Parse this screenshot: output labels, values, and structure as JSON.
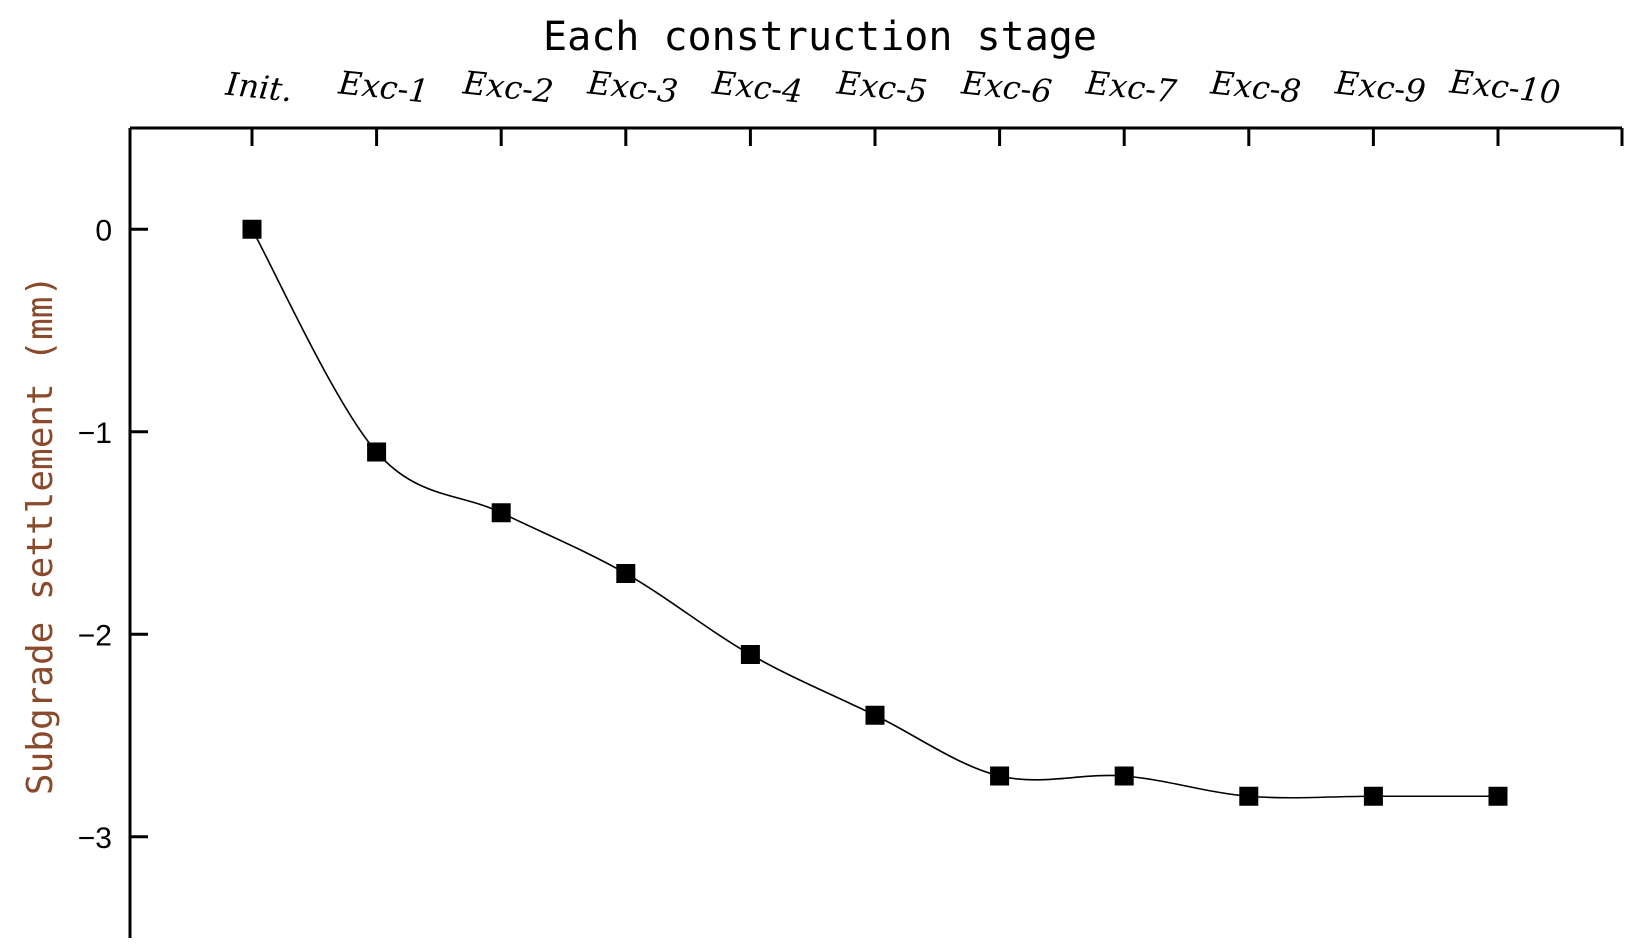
{
  "chart_data": {
    "type": "line",
    "title": "Each construction stage",
    "xlabel": "Each construction stage",
    "ylabel": "Subgrade settlement (mm)",
    "categories": [
      "Init.",
      "Exc-1",
      "Exc-2",
      "Exc-3",
      "Exc-4",
      "Exc-5",
      "Exc-6",
      "Exc-7",
      "Exc-8",
      "Exc-9",
      "Exc-10"
    ],
    "ylim": [
      -3.5,
      0.5
    ],
    "yticks": [
      0,
      -1,
      -2,
      -3
    ],
    "ytick_labels": [
      "0",
      "−1",
      "−2",
      "−3"
    ],
    "x_axis_position": "top",
    "grid": false,
    "legend": "none",
    "marker": "square",
    "line_style": "smooth",
    "colors": {
      "series": "#000000",
      "ylabel": "#8b4a2b"
    },
    "series": [
      {
        "values": [
          0,
          -1.1,
          -1.4,
          -1.7,
          -2.1,
          -2.4,
          -2.7,
          -2.7,
          -2.8,
          -2.8,
          -2.8
        ]
      }
    ]
  }
}
